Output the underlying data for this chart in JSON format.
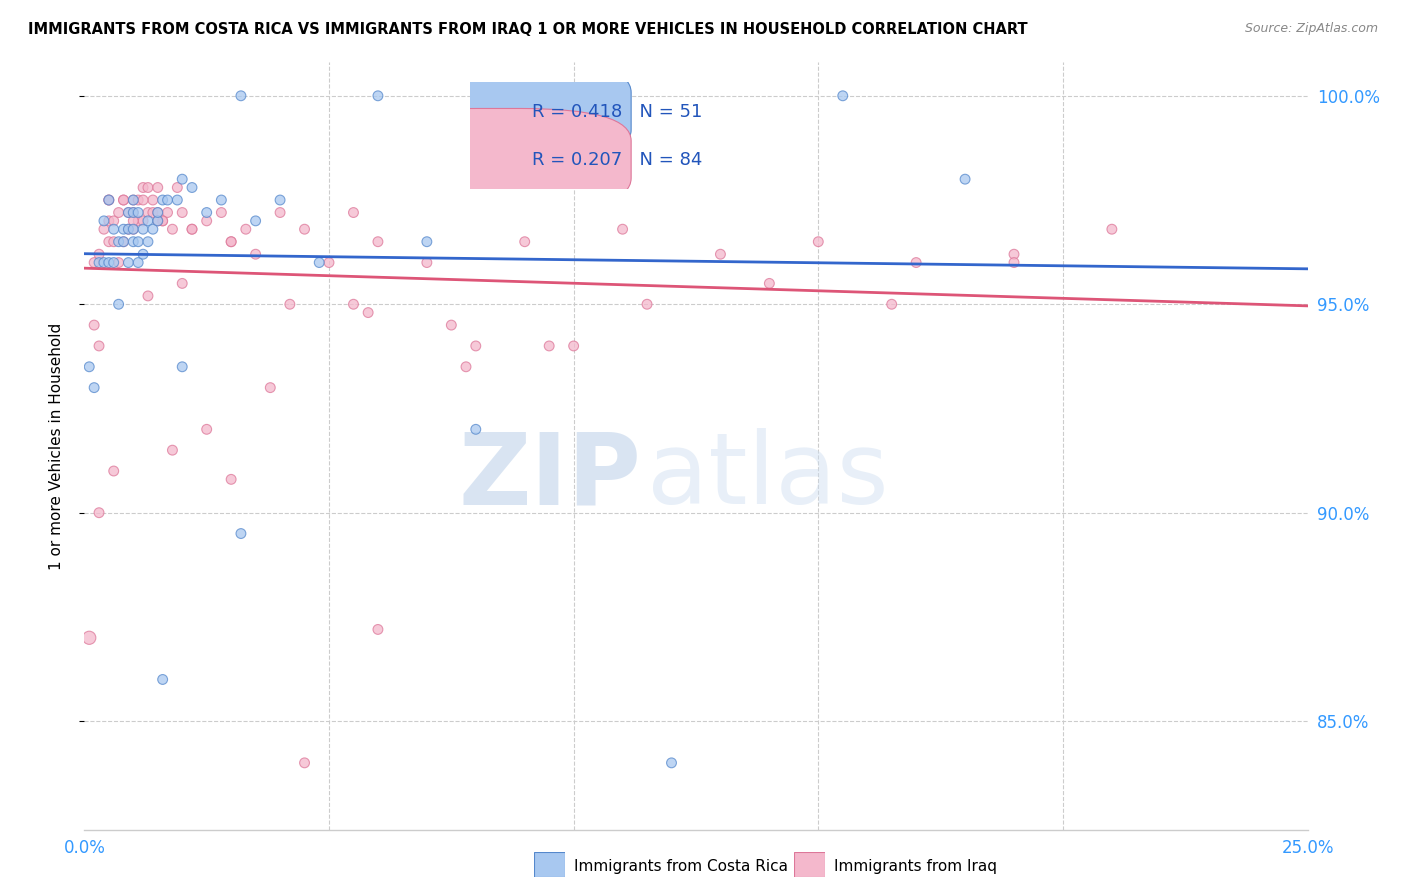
{
  "title": "IMMIGRANTS FROM COSTA RICA VS IMMIGRANTS FROM IRAQ 1 OR MORE VEHICLES IN HOUSEHOLD CORRELATION CHART",
  "source": "Source: ZipAtlas.com",
  "ylabel": "1 or more Vehicles in Household",
  "ytick_labels": [
    "85.0%",
    "90.0%",
    "95.0%",
    "100.0%"
  ],
  "ytick_values": [
    0.85,
    0.9,
    0.95,
    1.0
  ],
  "xlim": [
    0.0,
    0.25
  ],
  "ylim": [
    0.824,
    1.008
  ],
  "legend_blue_r": "0.418",
  "legend_blue_n": "51",
  "legend_pink_r": "0.207",
  "legend_pink_n": "84",
  "legend_label_blue": "Immigrants from Costa Rica",
  "legend_label_pink": "Immigrants from Iraq",
  "blue_fill": "#A8C8F0",
  "pink_fill": "#F4B8CC",
  "blue_edge": "#5588CC",
  "pink_edge": "#DD7799",
  "blue_line": "#3366CC",
  "pink_line": "#DD5577",
  "watermark_zip": "ZIP",
  "watermark_atlas": "atlas",
  "blue_x": [
    0.001,
    0.002,
    0.003,
    0.004,
    0.004,
    0.005,
    0.005,
    0.006,
    0.006,
    0.007,
    0.007,
    0.008,
    0.008,
    0.009,
    0.009,
    0.009,
    0.01,
    0.01,
    0.01,
    0.01,
    0.011,
    0.011,
    0.011,
    0.012,
    0.012,
    0.013,
    0.013,
    0.014,
    0.015,
    0.015,
    0.016,
    0.017,
    0.019,
    0.02,
    0.022,
    0.025,
    0.028,
    0.032,
    0.035,
    0.04,
    0.048,
    0.06,
    0.07,
    0.08,
    0.11,
    0.155,
    0.02,
    0.032,
    0.18,
    0.016,
    0.12
  ],
  "blue_y": [
    0.935,
    0.93,
    0.96,
    0.97,
    0.96,
    0.975,
    0.96,
    0.96,
    0.968,
    0.965,
    0.95,
    0.965,
    0.968,
    0.96,
    0.968,
    0.972,
    0.965,
    0.968,
    0.972,
    0.975,
    0.96,
    0.965,
    0.972,
    0.962,
    0.968,
    0.965,
    0.97,
    0.968,
    0.97,
    0.972,
    0.975,
    0.975,
    0.975,
    0.98,
    0.978,
    0.972,
    0.975,
    1.0,
    0.97,
    0.975,
    0.96,
    1.0,
    0.965,
    0.92,
    1.0,
    1.0,
    0.935,
    0.895,
    0.98,
    0.86,
    0.84
  ],
  "blue_size": [
    50,
    50,
    50,
    50,
    50,
    50,
    50,
    50,
    50,
    50,
    50,
    50,
    50,
    50,
    50,
    50,
    50,
    50,
    50,
    50,
    50,
    50,
    50,
    50,
    50,
    50,
    50,
    50,
    50,
    50,
    50,
    50,
    50,
    50,
    50,
    50,
    50,
    50,
    50,
    50,
    50,
    50,
    50,
    50,
    50,
    50,
    50,
    50,
    50,
    50,
    50
  ],
  "pink_x": [
    0.001,
    0.002,
    0.002,
    0.003,
    0.003,
    0.004,
    0.005,
    0.005,
    0.005,
    0.006,
    0.006,
    0.007,
    0.007,
    0.008,
    0.008,
    0.009,
    0.009,
    0.01,
    0.01,
    0.01,
    0.011,
    0.011,
    0.012,
    0.012,
    0.013,
    0.013,
    0.014,
    0.014,
    0.015,
    0.015,
    0.016,
    0.017,
    0.018,
    0.019,
    0.02,
    0.022,
    0.025,
    0.028,
    0.03,
    0.033,
    0.035,
    0.04,
    0.045,
    0.05,
    0.055,
    0.06,
    0.07,
    0.08,
    0.09,
    0.1,
    0.11,
    0.13,
    0.15,
    0.17,
    0.19,
    0.21,
    0.013,
    0.018,
    0.025,
    0.038,
    0.055,
    0.075,
    0.095,
    0.115,
    0.14,
    0.165,
    0.19,
    0.005,
    0.008,
    0.012,
    0.016,
    0.022,
    0.03,
    0.042,
    0.058,
    0.078,
    0.003,
    0.006,
    0.01,
    0.015,
    0.02,
    0.03,
    0.045,
    0.06
  ],
  "pink_y": [
    0.87,
    0.945,
    0.96,
    0.94,
    0.962,
    0.968,
    0.965,
    0.97,
    0.975,
    0.965,
    0.97,
    0.96,
    0.972,
    0.965,
    0.975,
    0.968,
    0.972,
    0.968,
    0.975,
    0.972,
    0.97,
    0.975,
    0.97,
    0.978,
    0.972,
    0.978,
    0.972,
    0.975,
    0.972,
    0.978,
    0.97,
    0.972,
    0.968,
    0.978,
    0.972,
    0.968,
    0.97,
    0.972,
    0.965,
    0.968,
    0.962,
    0.972,
    0.968,
    0.96,
    0.972,
    0.965,
    0.96,
    0.94,
    0.965,
    0.94,
    0.968,
    0.962,
    0.965,
    0.96,
    0.962,
    0.968,
    0.952,
    0.915,
    0.92,
    0.93,
    0.95,
    0.945,
    0.94,
    0.95,
    0.955,
    0.95,
    0.96,
    0.975,
    0.975,
    0.975,
    0.97,
    0.968,
    0.965,
    0.95,
    0.948,
    0.935,
    0.9,
    0.91,
    0.97,
    0.97,
    0.955,
    0.908,
    0.84,
    0.872
  ],
  "pink_size": [
    90,
    50,
    50,
    50,
    50,
    50,
    50,
    50,
    50,
    50,
    50,
    50,
    50,
    50,
    50,
    50,
    50,
    50,
    50,
    50,
    50,
    50,
    50,
    50,
    50,
    50,
    50,
    50,
    50,
    50,
    50,
    50,
    50,
    50,
    50,
    50,
    50,
    50,
    50,
    50,
    50,
    50,
    50,
    50,
    50,
    50,
    50,
    50,
    50,
    50,
    50,
    50,
    50,
    50,
    50,
    50,
    50,
    50,
    50,
    50,
    50,
    50,
    50,
    50,
    50,
    50,
    50,
    50,
    50,
    50,
    50,
    50,
    50,
    50,
    50,
    50,
    50,
    50,
    50,
    50,
    50,
    50,
    50,
    50
  ]
}
